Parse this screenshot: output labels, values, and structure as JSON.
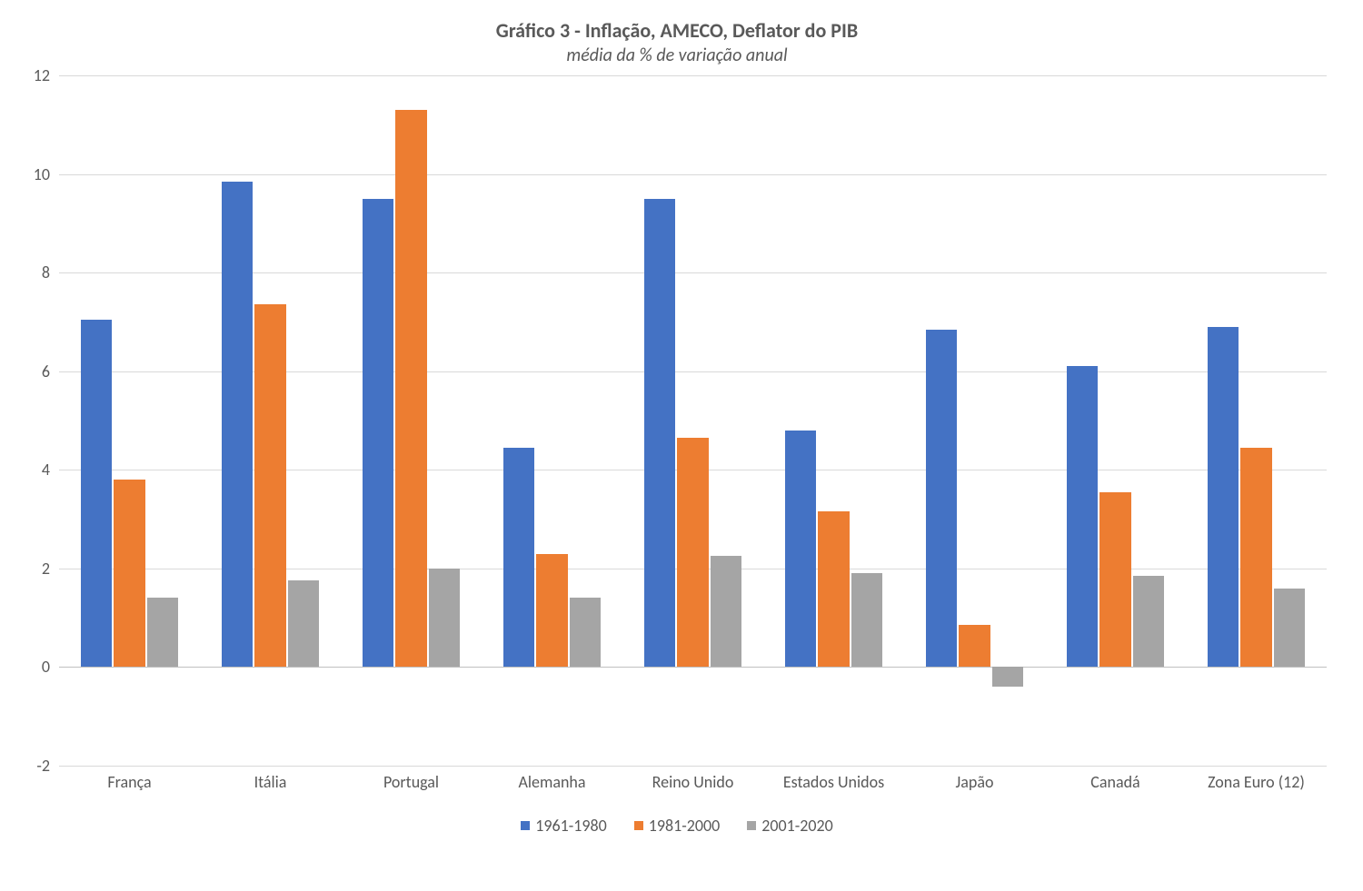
{
  "chart": {
    "type": "bar",
    "title": "Gráfico 3 - Inflação, AMECO, Deflator do PIB",
    "subtitle": "média da % de variação anual",
    "title_fontsize": 22,
    "subtitle_fontsize": 20,
    "title_color": "#595959",
    "background_color": "#ffffff",
    "grid_color": "#d9d9d9",
    "axis_color": "#bfbfbf",
    "label_color": "#595959",
    "label_fontsize": 18,
    "ylim": [
      -2,
      12
    ],
    "ytick_step": 2,
    "yticks": [
      -2,
      0,
      2,
      4,
      6,
      8,
      10,
      12
    ],
    "categories": [
      "França",
      "Itália",
      "Portugal",
      "Alemanha",
      "Reino Unido",
      "Estados Unidos",
      "Japão",
      "Canadá",
      "Zona Euro (12)"
    ],
    "series": [
      {
        "name": "1961-1980",
        "color": "#4472c4",
        "values": [
          7.05,
          9.85,
          9.5,
          4.45,
          9.5,
          4.8,
          6.85,
          6.1,
          6.9
        ]
      },
      {
        "name": "1981-2000",
        "color": "#ed7d31",
        "values": [
          3.8,
          7.35,
          11.3,
          2.3,
          4.65,
          3.15,
          0.85,
          3.55,
          4.45
        ]
      },
      {
        "name": "2001-2020",
        "color": "#a5a5a5",
        "values": [
          1.4,
          1.75,
          2.0,
          1.4,
          2.25,
          1.9,
          -0.4,
          1.85,
          1.6
        ]
      }
    ],
    "bar_group_width": 0.7
  }
}
